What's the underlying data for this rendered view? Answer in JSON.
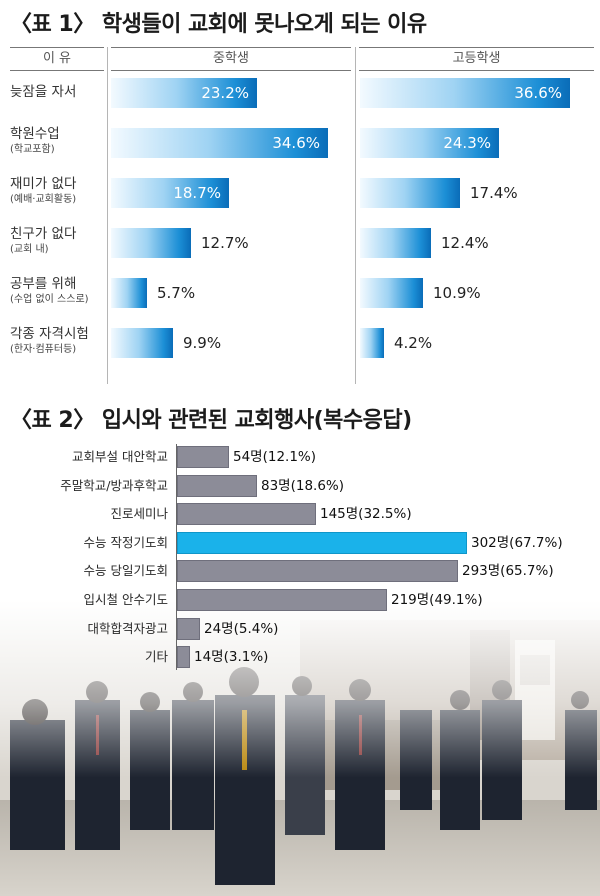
{
  "table1": {
    "title": "〈표 1〉 학생들이 교회에 못나오게 되는 이유",
    "header": {
      "reason": "이 유",
      "middle": "중학생",
      "high": "고등학생"
    },
    "chart_data": {
      "type": "bar",
      "title": "학생들이 교회에 못나오게 되는 이유",
      "categories": [
        "늦잠을 자서",
        "학원수업",
        "재미가 없다",
        "친구가 없다",
        "공부를 위해",
        "각종 자격시험"
      ],
      "sublabels": [
        "",
        "(학교포함)",
        "(예배·교회활동)",
        "(교회 내)",
        "(수업 없이 스스로)",
        "(한자·컴퓨터등)"
      ],
      "series": [
        {
          "name": "중학생",
          "values": [
            23.2,
            34.6,
            18.7,
            12.7,
            5.7,
            9.9
          ],
          "labels": [
            "23.2%",
            "34.6%",
            "18.7%",
            "12.7%",
            "5.7%",
            "9.9%"
          ]
        },
        {
          "name": "고등학생",
          "values": [
            36.6,
            24.3,
            17.4,
            12.4,
            10.9,
            4.2
          ],
          "labels": [
            "36.6%",
            "24.3%",
            "17.4%",
            "12.4%",
            "10.9%",
            "4.2%"
          ]
        }
      ],
      "unit": "%"
    }
  },
  "table2": {
    "title": "〈표 2〉 입시와 관련된 교회행사(복수응답)",
    "chart_data": {
      "type": "bar",
      "orientation": "horizontal",
      "title": "입시와 관련된 교회행사(복수응답)",
      "categories": [
        "교회부설 대안학교",
        "주말학교/방과후학교",
        "진로세미나",
        "수능 작정기도회",
        "수능 당일기도회",
        "입시철 안수기도",
        "대학합격자광고",
        "기타"
      ],
      "values": [
        54,
        83,
        145,
        302,
        293,
        219,
        24,
        14
      ],
      "percents": [
        12.1,
        18.6,
        32.5,
        67.7,
        65.7,
        49.1,
        5.4,
        3.1
      ],
      "labels": [
        "54명(12.1%)",
        "83명(18.6%)",
        "145명(32.5%)",
        "302명(67.7%)",
        "293명(65.7%)",
        "219명(49.1%)",
        "24명(5.4%)",
        "14명(3.1%)"
      ],
      "highlight_index": 3,
      "colors": {
        "normal": "#8c8c98",
        "highlight": "#1ab2ea"
      }
    }
  },
  "colors": {
    "accent": "#0a6cb8",
    "highlight": "#1ab2ea"
  }
}
